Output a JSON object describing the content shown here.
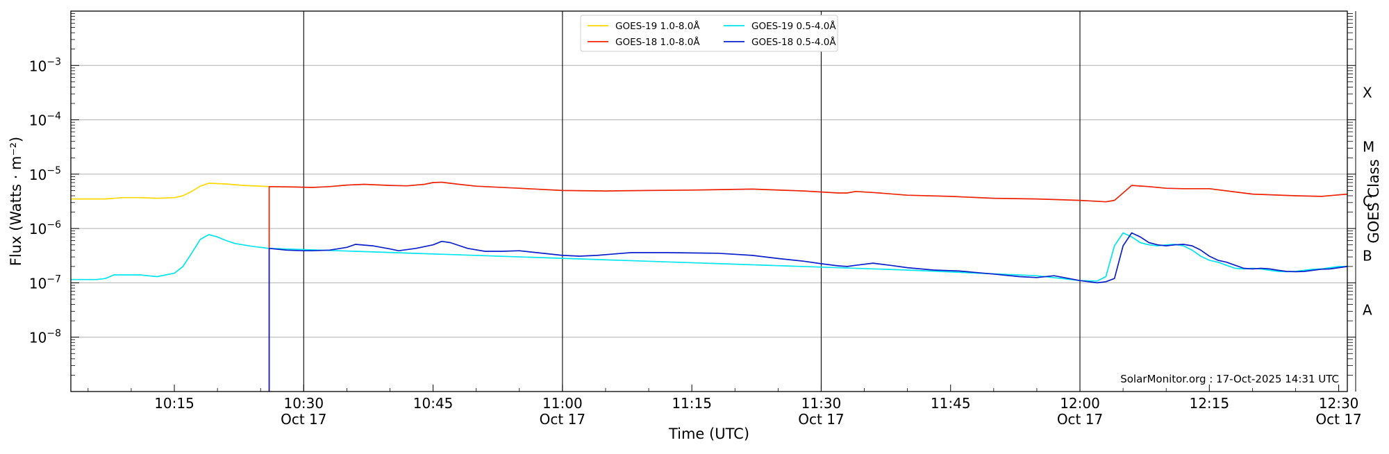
{
  "chart_data": {
    "type": "line",
    "xlabel": "Time (UTC)",
    "ylabel": "Flux (Watts · m⁻²)",
    "ylabel_right": "GOES Class",
    "y_scale": "log",
    "ylim": [
      1e-09,
      0.01
    ],
    "xlim": [
      "10:03",
      "12:31"
    ],
    "grid": "horizontal at decades",
    "legend_position": "top-center",
    "credit": "SolarMonitor.org : 17-Oct-2025 14:31 UTC",
    "x_ticks": [
      {
        "time": "10:15",
        "label": "10:15",
        "sublabel": ""
      },
      {
        "time": "10:30",
        "label": "10:30",
        "sublabel": "Oct 17"
      },
      {
        "time": "10:45",
        "label": "10:45",
        "sublabel": ""
      },
      {
        "time": "11:00",
        "label": "11:00",
        "sublabel": "Oct 17"
      },
      {
        "time": "11:15",
        "label": "11:15",
        "sublabel": ""
      },
      {
        "time": "11:30",
        "label": "11:30",
        "sublabel": "Oct 17"
      },
      {
        "time": "11:45",
        "label": "11:45",
        "sublabel": ""
      },
      {
        "time": "12:00",
        "label": "12:00",
        "sublabel": "Oct 17"
      },
      {
        "time": "12:15",
        "label": "12:15",
        "sublabel": ""
      },
      {
        "time": "12:30",
        "label": "12:30",
        "sublabel": "Oct 17"
      }
    ],
    "vertical_markers": [
      "10:30",
      "11:00",
      "11:30",
      "12:00"
    ],
    "y_ticks": [
      {
        "value": 1e-08,
        "base": "10",
        "exp": "−8"
      },
      {
        "value": 1e-07,
        "base": "10",
        "exp": "−7"
      },
      {
        "value": 1e-06,
        "base": "10",
        "exp": "−6"
      },
      {
        "value": 1e-05,
        "base": "10",
        "exp": "−5"
      },
      {
        "value": 0.0001,
        "base": "10",
        "exp": "−4"
      },
      {
        "value": 0.001,
        "base": "10",
        "exp": "−3"
      }
    ],
    "goes_classes": [
      {
        "label": "A",
        "value": 3.16e-08
      },
      {
        "label": "B",
        "value": 3.16e-07
      },
      {
        "label": "C",
        "value": 3.16e-06
      },
      {
        "label": "M",
        "value": 3.16e-05
      },
      {
        "label": "X",
        "value": 0.000316
      }
    ],
    "legend": [
      {
        "name": "GOES-19 1.0-8.0Å",
        "color": "#FFD700"
      },
      {
        "name": "GOES-19 0.5-4.0Å",
        "color": "#00E5EE"
      },
      {
        "name": "GOES-18 1.0-8.0Å",
        "color": "#EE2200"
      },
      {
        "name": "GOES-18 0.5-4.0Å",
        "color": "#0A1FCC"
      }
    ],
    "series": [
      {
        "name": "GOES-19 1.0-8.0Å",
        "color": "#FFD700",
        "x": [
          "10:03",
          "10:07",
          "10:09",
          "10:11",
          "10:13",
          "10:15",
          "10:16",
          "10:17",
          "10:18",
          "10:19",
          "10:21",
          "10:23",
          "10:25",
          "10:26"
        ],
        "y": [
          3.5e-06,
          3.5e-06,
          3.7e-06,
          3.7e-06,
          3.6e-06,
          3.7e-06,
          4e-06,
          4.8e-06,
          6e-06,
          6.8e-06,
          6.6e-06,
          6.2e-06,
          6e-06,
          5.9e-06
        ]
      },
      {
        "name": "GOES-19 0.5-4.0Å",
        "color": "#00E5EE",
        "x": [
          "10:03",
          "10:06",
          "10:07",
          "10:08",
          "10:11",
          "10:13",
          "10:14",
          "10:15",
          "10:16",
          "10:17",
          "10:18",
          "10:19",
          "10:20",
          "10:21",
          "10:22",
          "10:24",
          "10:26",
          "11:40",
          "11:55",
          "12:00",
          "12:02",
          "12:03",
          "12:04",
          "12:05",
          "12:06",
          "12:07",
          "12:08",
          "12:09",
          "12:10",
          "12:11",
          "12:12",
          "12:13",
          "12:14",
          "12:15",
          "12:16",
          "12:17",
          "12:18",
          "12:19",
          "12:20",
          "12:21",
          "12:22",
          "12:23",
          "12:24",
          "12:25",
          "12:26",
          "12:27",
          "12:28",
          "12:29",
          "12:30",
          "12:31"
        ],
        "y": [
          1.15e-07,
          1.15e-07,
          1.2e-07,
          1.4e-07,
          1.4e-07,
          1.3e-07,
          1.4e-07,
          1.5e-07,
          2e-07,
          3.5e-07,
          6.3e-07,
          7.7e-07,
          7e-07,
          6e-07,
          5.3e-07,
          4.7e-07,
          4.3e-07,
          1.72e-07,
          1.35e-07,
          1.1e-07,
          1.08e-07,
          1.3e-07,
          4.8e-07,
          8.3e-07,
          7e-07,
          5.5e-07,
          5e-07,
          4.8e-07,
          5e-07,
          5.1e-07,
          4.8e-07,
          4e-07,
          3.1e-07,
          2.6e-07,
          2.4e-07,
          2.1e-07,
          1.85e-07,
          1.8e-07,
          1.85e-07,
          1.8e-07,
          1.7e-07,
          1.62e-07,
          1.6e-07,
          1.62e-07,
          1.7e-07,
          1.78e-07,
          1.8e-07,
          1.9e-07,
          2e-07,
          2e-07
        ]
      },
      {
        "name": "GOES-18 1.0-8.0Å",
        "color": "#EE2200",
        "x": [
          "10:26",
          "10:26",
          "10:29",
          "10:31",
          "10:33",
          "10:35",
          "10:37",
          "10:40",
          "10:42",
          "10:44",
          "10:45",
          "10:46",
          "10:48",
          "10:50",
          "10:55",
          "11:00",
          "11:05",
          "11:10",
          "11:15",
          "11:22",
          "11:28",
          "11:32",
          "11:33",
          "11:34",
          "11:36",
          "11:40",
          "11:45",
          "11:50",
          "11:55",
          "12:00",
          "12:03",
          "12:04",
          "12:05",
          "12:06",
          "12:08",
          "12:10",
          "12:12",
          "12:15",
          "12:18",
          "12:20",
          "12:25",
          "12:28",
          "12:31"
        ],
        "y": [
          1e-09,
          5.9e-06,
          5.8e-06,
          5.7e-06,
          5.9e-06,
          6.3e-06,
          6.5e-06,
          6.2e-06,
          6.1e-06,
          6.5e-06,
          7e-06,
          7.1e-06,
          6.5e-06,
          6e-06,
          5.5e-06,
          5e-06,
          4.9e-06,
          5e-06,
          5.1e-06,
          5.3e-06,
          4.9e-06,
          4.5e-06,
          4.5e-06,
          4.8e-06,
          4.6e-06,
          4.1e-06,
          3.9e-06,
          3.6e-06,
          3.5e-06,
          3.3e-06,
          3.1e-06,
          3.3e-06,
          4.5e-06,
          6.2e-06,
          5.9e-06,
          5.5e-06,
          5.4e-06,
          5.4e-06,
          4.7e-06,
          4.3e-06,
          4e-06,
          3.9e-06,
          4.3e-06
        ]
      },
      {
        "name": "GOES-18 0.5-4.0Å",
        "color": "#0A1FCC",
        "x": [
          "10:26",
          "10:26",
          "10:28",
          "10:30",
          "10:31",
          "10:33",
          "10:35",
          "10:36",
          "10:38",
          "10:40",
          "10:41",
          "10:43",
          "10:45",
          "10:46",
          "10:47",
          "10:49",
          "10:51",
          "10:53",
          "10:55",
          "10:57",
          "11:00",
          "11:02",
          "11:04",
          "11:06",
          "11:08",
          "11:12",
          "11:18",
          "11:22",
          "11:25",
          "11:28",
          "11:30",
          "11:32",
          "11:33",
          "11:34",
          "11:36",
          "11:38",
          "11:40",
          "11:43",
          "11:46",
          "11:50",
          "11:53",
          "11:55",
          "11:57",
          "12:00",
          "12:02",
          "12:03",
          "12:04",
          "12:05",
          "12:06",
          "12:07",
          "12:08",
          "12:09",
          "12:10",
          "12:11",
          "12:12",
          "12:13",
          "12:14",
          "12:15",
          "12:16",
          "12:17",
          "12:18",
          "12:19",
          "12:20",
          "12:21",
          "12:22",
          "12:23",
          "12:24",
          "12:25",
          "12:26",
          "12:27",
          "12:28",
          "12:29",
          "12:30",
          "12:31"
        ],
        "y": [
          1e-09,
          4.3e-07,
          4e-07,
          3.9e-07,
          3.9e-07,
          4e-07,
          4.5e-07,
          5.1e-07,
          4.8e-07,
          4.2e-07,
          3.9e-07,
          4.3e-07,
          5e-07,
          5.8e-07,
          5.5e-07,
          4.3e-07,
          3.8e-07,
          3.8e-07,
          3.9e-07,
          3.6e-07,
          3.2e-07,
          3.1e-07,
          3.2e-07,
          3.4e-07,
          3.6e-07,
          3.6e-07,
          3.5e-07,
          3.2e-07,
          2.8e-07,
          2.5e-07,
          2.25e-07,
          2.05e-07,
          2e-07,
          2.1e-07,
          2.3e-07,
          2.1e-07,
          1.9e-07,
          1.72e-07,
          1.65e-07,
          1.45e-07,
          1.3e-07,
          1.25e-07,
          1.35e-07,
          1.1e-07,
          1e-07,
          1.05e-07,
          1.2e-07,
          4.8e-07,
          8.3e-07,
          7e-07,
          5.5e-07,
          5e-07,
          4.8e-07,
          5e-07,
          5.1e-07,
          4.8e-07,
          4e-07,
          3.1e-07,
          2.6e-07,
          2.4e-07,
          2.1e-07,
          1.85e-07,
          1.8e-07,
          1.85e-07,
          1.8e-07,
          1.7e-07,
          1.62e-07,
          1.6e-07,
          1.62e-07,
          1.7e-07,
          1.78e-07,
          1.8e-07,
          1.9e-07,
          2e-07
        ]
      }
    ]
  }
}
